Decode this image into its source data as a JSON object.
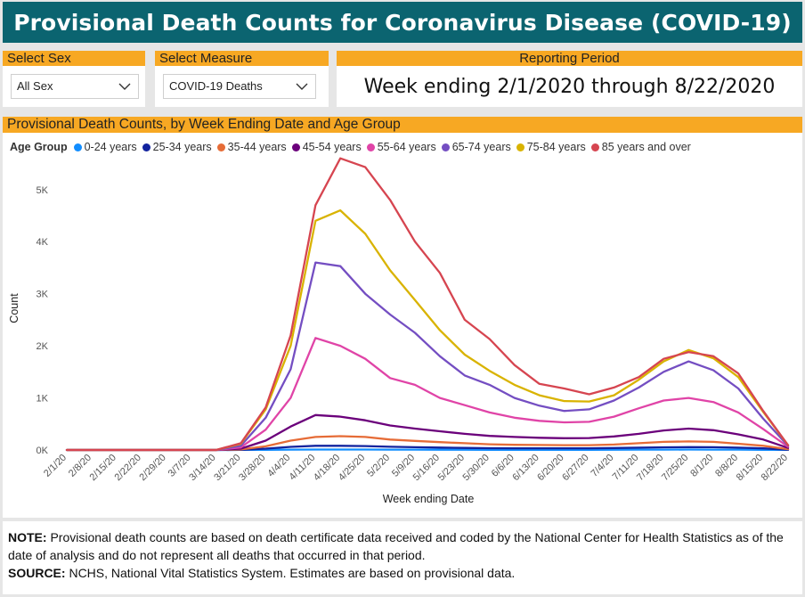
{
  "header": {
    "title": "Provisional Death Counts for Coronavirus Disease (COVID-19)"
  },
  "filters": {
    "sex": {
      "label": "Select Sex",
      "value": "All Sex"
    },
    "measure": {
      "label": "Select Measure",
      "value": "COVID-19 Deaths"
    },
    "period": {
      "label": "Reporting Period",
      "value": "Week ending 2/1/2020 through 8/22/2020"
    }
  },
  "chart_panel": {
    "title": "Provisional Death Counts, by Week Ending Date and Age Group"
  },
  "colors": {
    "header_bg": "#0b6470",
    "accent": "#f7a823"
  },
  "chart_data": {
    "type": "line",
    "legend_title": "Age Group",
    "legend_position": "top-left",
    "xlabel": "Week ending Date",
    "ylabel": "Count",
    "ylim": [
      0,
      5800
    ],
    "yticks": [
      0,
      1000,
      2000,
      3000,
      4000,
      5000
    ],
    "ytick_labels": [
      "0K",
      "1K",
      "2K",
      "3K",
      "4K",
      "5K"
    ],
    "grid": false,
    "x": [
      "2/1/20",
      "2/8/20",
      "2/15/20",
      "2/22/20",
      "2/29/20",
      "3/7/20",
      "3/14/20",
      "3/21/20",
      "3/28/20",
      "4/4/20",
      "4/11/20",
      "4/18/20",
      "4/25/20",
      "5/2/20",
      "5/9/20",
      "5/16/20",
      "5/23/20",
      "5/30/20",
      "6/6/20",
      "6/13/20",
      "6/20/20",
      "6/27/20",
      "7/4/20",
      "7/11/20",
      "7/18/20",
      "7/25/20",
      "8/1/20",
      "8/8/20",
      "8/15/20",
      "8/22/20"
    ],
    "series": [
      {
        "name": "0-24 years",
        "color": "#118dff",
        "values": [
          0,
          0,
          0,
          0,
          0,
          0,
          0,
          1,
          3,
          6,
          8,
          9,
          8,
          6,
          6,
          5,
          5,
          4,
          4,
          4,
          4,
          4,
          5,
          6,
          7,
          8,
          7,
          6,
          4,
          1
        ]
      },
      {
        "name": "25-34 years",
        "color": "#12239e",
        "values": [
          0,
          0,
          0,
          0,
          0,
          0,
          0,
          4,
          25,
          60,
          80,
          80,
          75,
          62,
          53,
          47,
          40,
          35,
          33,
          32,
          32,
          33,
          38,
          45,
          52,
          55,
          53,
          45,
          30,
          5
        ]
      },
      {
        "name": "35-44 years",
        "color": "#e66c37",
        "values": [
          0,
          0,
          0,
          0,
          0,
          0,
          0,
          10,
          70,
          180,
          250,
          265,
          250,
          200,
          175,
          150,
          130,
          110,
          100,
          95,
          92,
          92,
          105,
          130,
          155,
          165,
          155,
          120,
          80,
          15
        ]
      },
      {
        "name": "45-54 years",
        "color": "#6b007b",
        "values": [
          0,
          0,
          0,
          0,
          0,
          0,
          0,
          25,
          180,
          450,
          670,
          640,
          570,
          470,
          410,
          360,
          310,
          270,
          250,
          235,
          225,
          230,
          260,
          310,
          375,
          410,
          380,
          300,
          200,
          40
        ]
      },
      {
        "name": "55-64 years",
        "color": "#e044a7",
        "values": [
          0,
          0,
          0,
          0,
          0,
          0,
          0,
          50,
          390,
          1000,
          2150,
          2000,
          1750,
          1380,
          1250,
          1000,
          860,
          720,
          620,
          560,
          530,
          540,
          640,
          800,
          950,
          1000,
          920,
          720,
          400,
          60
        ]
      },
      {
        "name": "65-74 years",
        "color": "#744ec2",
        "values": [
          0,
          0,
          0,
          0,
          0,
          0,
          0,
          80,
          620,
          1550,
          3600,
          3530,
          3000,
          2600,
          2250,
          1800,
          1430,
          1250,
          1000,
          850,
          750,
          780,
          950,
          1200,
          1500,
          1700,
          1530,
          1180,
          600,
          80
        ]
      },
      {
        "name": "75-84 years",
        "color": "#d9b300",
        "values": [
          0,
          0,
          0,
          0,
          0,
          0,
          0,
          120,
          780,
          2000,
          4400,
          4600,
          4150,
          3450,
          2880,
          2300,
          1830,
          1520,
          1250,
          1050,
          940,
          930,
          1050,
          1350,
          1700,
          1920,
          1760,
          1400,
          730,
          90
        ]
      },
      {
        "name": "85 years and over",
        "color": "#d64550",
        "values": [
          0,
          0,
          0,
          0,
          0,
          0,
          0,
          130,
          820,
          2200,
          4700,
          5600,
          5430,
          4800,
          4000,
          3400,
          2500,
          2130,
          1630,
          1270,
          1180,
          1070,
          1200,
          1400,
          1750,
          1880,
          1800,
          1470,
          750,
          90
        ]
      }
    ]
  },
  "footnote": {
    "note_label": "NOTE:",
    "note_text": " Provisional death counts are based on death certificate data received and coded by the National Center for Health Statistics as of the date of analysis and do not represent all deaths that occurred in that period.",
    "source_label": "SOURCE:",
    "source_text": " NCHS, National Vital Statistics System. Estimates are based on provisional data."
  }
}
